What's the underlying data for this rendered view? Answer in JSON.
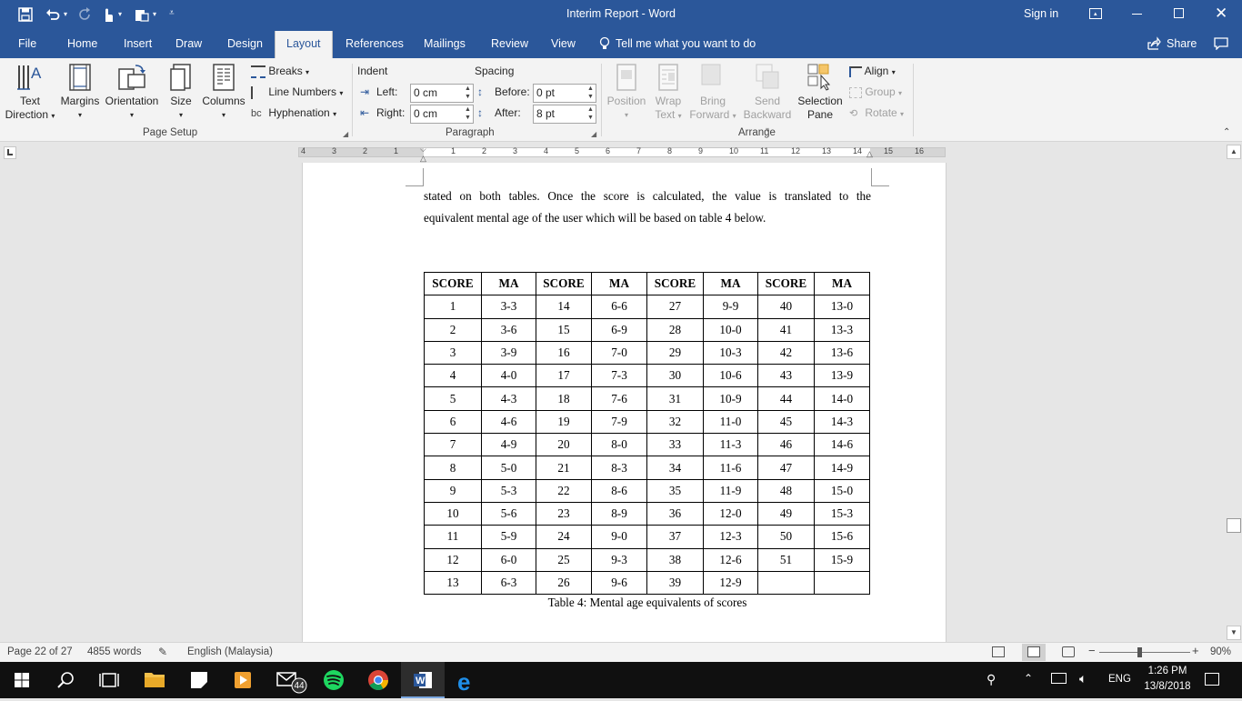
{
  "window": {
    "title": "Interim Report  -  Word",
    "sign_in": "Sign in"
  },
  "tabs": [
    "File",
    "Home",
    "Insert",
    "Draw",
    "Design",
    "Layout",
    "References",
    "Mailings",
    "Review",
    "View"
  ],
  "tell_me": "Tell me what you want to do",
  "share": "Share",
  "ribbon": {
    "page_setup": {
      "text_direction": [
        "Text",
        "Direction"
      ],
      "margins": "Margins",
      "orientation": "Orientation",
      "size": "Size",
      "columns": "Columns",
      "breaks": "Breaks",
      "line_numbers": "Line Numbers",
      "hyphenation": "Hyphenation",
      "label": "Page Setup"
    },
    "paragraph": {
      "indent": "Indent",
      "spacing": "Spacing",
      "left_label": "Left:",
      "left_value": "0 cm",
      "right_label": "Right:",
      "right_value": "0 cm",
      "before_label": "Before:",
      "before_value": "0 pt",
      "after_label": "After:",
      "after_value": "8 pt",
      "label": "Paragraph"
    },
    "arrange": {
      "position": "Position",
      "wrap_text": [
        "Wrap",
        "Text"
      ],
      "bring_forward": [
        "Bring",
        "Forward"
      ],
      "send_backward": [
        "Send",
        "Backward"
      ],
      "selection_pane": [
        "Selection",
        "Pane"
      ],
      "align": "Align",
      "group": "Group",
      "rotate": "Rotate",
      "label": "Arrange"
    }
  },
  "ruler": {
    "labels": [
      "4",
      "3",
      "2",
      "1",
      "1",
      "2",
      "3",
      "4",
      "5",
      "6",
      "7",
      "8",
      "9",
      "10",
      "11",
      "12",
      "13",
      "14",
      "15",
      "16"
    ]
  },
  "document": {
    "paragraph_line1": "stated on both tables. Once the score is calculated, the value is translated to the",
    "paragraph_line2": "equivalent mental age of the user which will be based on table 4 below.",
    "table_headers": [
      "SCORE",
      "MA",
      "SCORE",
      "MA",
      "SCORE",
      "MA",
      "SCORE",
      "MA"
    ],
    "table_rows": [
      [
        "1",
        "3-3",
        "14",
        "6-6",
        "27",
        "9-9",
        "40",
        "13-0"
      ],
      [
        "2",
        "3-6",
        "15",
        "6-9",
        "28",
        "10-0",
        "41",
        "13-3"
      ],
      [
        "3",
        "3-9",
        "16",
        "7-0",
        "29",
        "10-3",
        "42",
        "13-6"
      ],
      [
        "4",
        "4-0",
        "17",
        "7-3",
        "30",
        "10-6",
        "43",
        "13-9"
      ],
      [
        "5",
        "4-3",
        "18",
        "7-6",
        "31",
        "10-9",
        "44",
        "14-0"
      ],
      [
        "6",
        "4-6",
        "19",
        "7-9",
        "32",
        "11-0",
        "45",
        "14-3"
      ],
      [
        "7",
        "4-9",
        "20",
        "8-0",
        "33",
        "11-3",
        "46",
        "14-6"
      ],
      [
        "8",
        "5-0",
        "21",
        "8-3",
        "34",
        "11-6",
        "47",
        "14-9"
      ],
      [
        "9",
        "5-3",
        "22",
        "8-6",
        "35",
        "11-9",
        "48",
        "15-0"
      ],
      [
        "10",
        "5-6",
        "23",
        "8-9",
        "36",
        "12-0",
        "49",
        "15-3"
      ],
      [
        "11",
        "5-9",
        "24",
        "9-0",
        "37",
        "12-3",
        "50",
        "15-6"
      ],
      [
        "12",
        "6-0",
        "25",
        "9-3",
        "38",
        "12-6",
        "51",
        "15-9"
      ],
      [
        "13",
        "6-3",
        "26",
        "9-6",
        "39",
        "12-9",
        "",
        ""
      ]
    ],
    "caption": "Table 4: Mental age equivalents of scores"
  },
  "status": {
    "page": "Page 22 of 27",
    "words": "4855 words",
    "language": "English (Malaysia)",
    "zoom": "90%",
    "zoom_level": 0.9
  },
  "taskbar": {
    "mail_badge": "44",
    "language": "ENG",
    "time": "1:26 PM",
    "date": "13/8/2018"
  },
  "colors": {
    "word_blue": "#2b579a",
    "ribbon_bg": "#f3f3f3",
    "taskbar": "#101010"
  }
}
